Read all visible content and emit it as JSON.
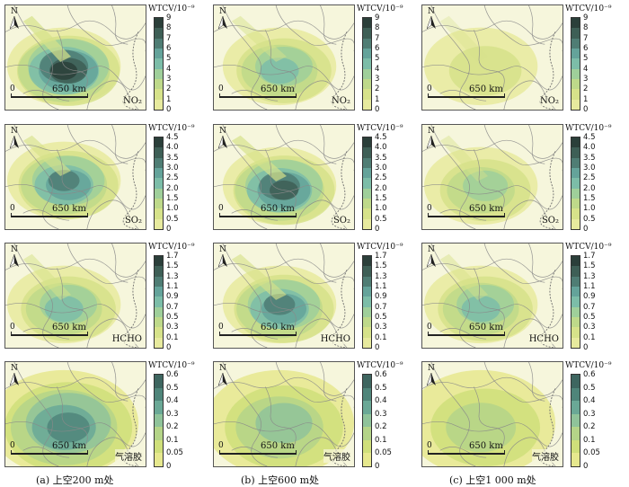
{
  "legend_unit": "WTCV/10⁻⁹",
  "scale": {
    "zero": "0",
    "distance": "650 km"
  },
  "north_label": "N",
  "rows": [
    {
      "species": "NO₂",
      "ticks": [
        "9",
        "8",
        "7",
        "6",
        "5",
        "4",
        "3",
        "2",
        "1",
        "0"
      ],
      "colors": [
        "#2b3f3a",
        "#3e5f56",
        "#4f7d74",
        "#64a39a",
        "#7cbda8",
        "#9fcf9a",
        "#bed98a",
        "#d6e28a",
        "#e7ea9e",
        "#f6f6d4"
      ],
      "intensity": [
        0.95,
        0.55,
        0.25
      ]
    },
    {
      "species": "SO₂",
      "ticks": [
        "4.5",
        "4.0",
        "3.5",
        "3.0",
        "2.5",
        "2.0",
        "1.5",
        "1.0",
        "0.5",
        "0"
      ],
      "colors": [
        "#2b3f3a",
        "#3e5f56",
        "#4f7d74",
        "#64a39a",
        "#7cbda8",
        "#9fcf9a",
        "#bed98a",
        "#d6e28a",
        "#e7ea9e",
        "#f6f6d4"
      ],
      "intensity": [
        0.8,
        0.9,
        0.45
      ]
    },
    {
      "species": "HCHO",
      "ticks": [
        "1.7",
        "1.5",
        "1.3",
        "1.1",
        "0.9",
        "0.7",
        "0.5",
        "0.3",
        "0.1",
        "0"
      ],
      "colors": [
        "#2b3f3a",
        "#3e5f56",
        "#4f7d74",
        "#64a39a",
        "#7cbda8",
        "#9fcf9a",
        "#bed98a",
        "#d6e28a",
        "#e7ea9e",
        "#f6f6d4"
      ],
      "intensity": [
        0.6,
        0.8,
        0.5
      ]
    },
    {
      "species": "气溶胶",
      "ticks": [
        "0.6",
        "0.5",
        "0.4",
        "0.3",
        "0.2",
        "0.1",
        "0.05",
        "0"
      ],
      "colors": [
        "#3e6660",
        "#4f857a",
        "#6aa896",
        "#8fc39a",
        "#b4d488",
        "#cfdf7a",
        "#e6e88e",
        "#f6f6d4"
      ],
      "intensity": [
        0.85,
        0.6,
        0.45
      ]
    }
  ],
  "columns": [
    {
      "caption": "(a) 上空200 m处"
    },
    {
      "caption": "(b) 上空600 m处"
    },
    {
      "caption": "(c) 上空1 000 m处"
    }
  ],
  "colors": {
    "background": "#f6f6dc",
    "border": "#555555",
    "boundary": "#8a8a8a"
  }
}
